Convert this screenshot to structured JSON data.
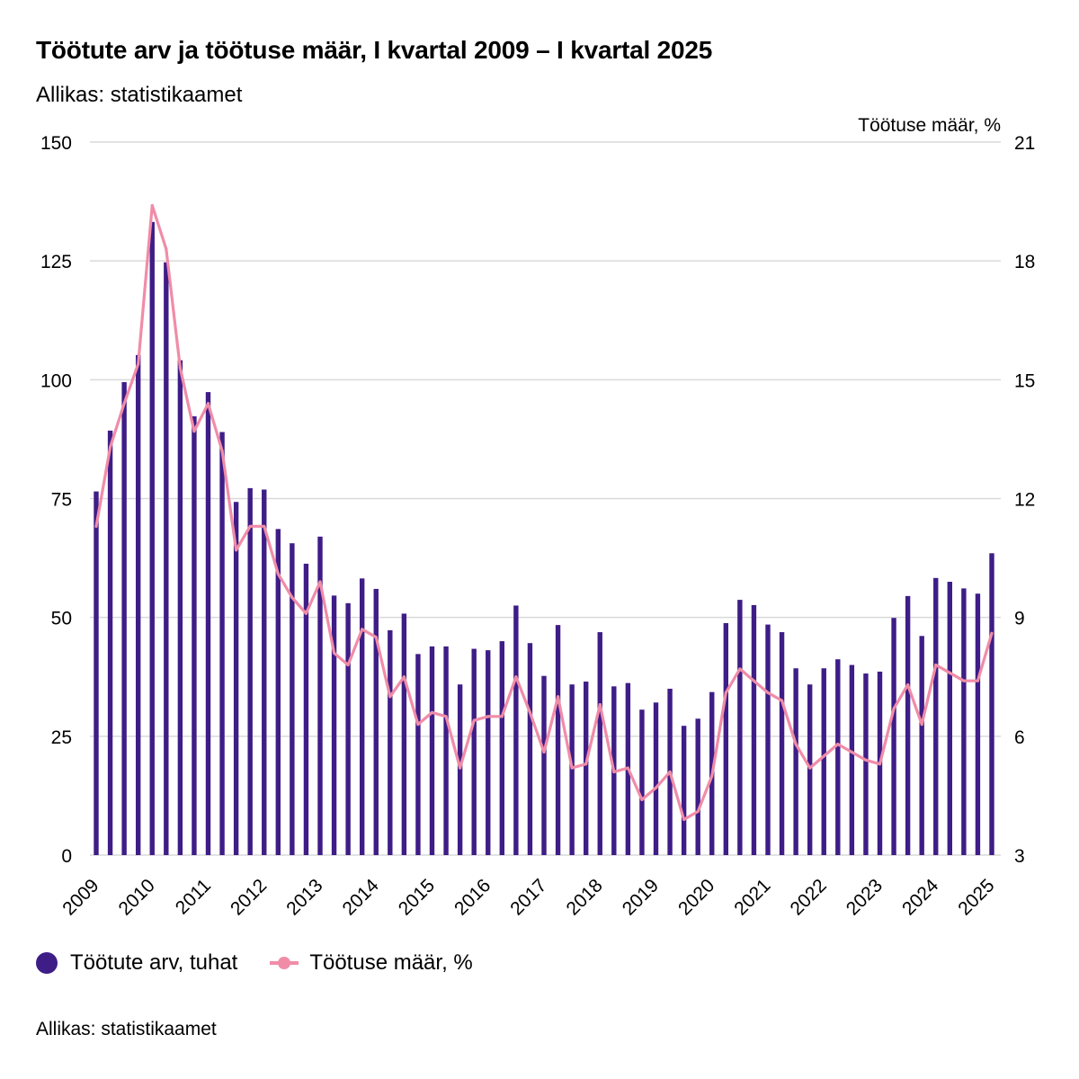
{
  "header": {
    "title": "Töötute arv ja töötuse määr, I kvartal 2009 – I kvartal 2025",
    "subtitle": "Allikas: statistikaamet"
  },
  "legend": {
    "items": [
      {
        "label": "Töötute arv, tuhat",
        "icon": "dot-icon"
      },
      {
        "label": "Töötuse määr, %",
        "icon": "line-marker-icon"
      }
    ]
  },
  "footer": {
    "source": "Allikas: statistikaamet"
  },
  "colors": {
    "bars": "#3e1d87",
    "line": "#f08ca8",
    "grid": "#d9d9d9"
  },
  "chart_data": {
    "type": "bar",
    "title": "Töötute arv ja töötuse määr, I kvartal 2009 – I kvartal 2025",
    "xlabel": "",
    "ylabel": "",
    "y2label": "Töötuse määr, %",
    "ylim": [
      0,
      150
    ],
    "y2lim": [
      3,
      21
    ],
    "yticks": [
      0,
      25,
      50,
      75,
      100,
      125,
      150
    ],
    "y2ticks": [
      3,
      6,
      9,
      12,
      15,
      18,
      21
    ],
    "grid": true,
    "legend_position": "bottom-left",
    "x_tick_labels": [
      "2009",
      "2010",
      "2011",
      "2012",
      "2013",
      "2014",
      "2015",
      "2016",
      "2017",
      "2018",
      "2019",
      "2020",
      "2021",
      "2022",
      "2023",
      "2024",
      "2025"
    ],
    "x_tick_label_index": [
      0,
      4,
      8,
      12,
      16,
      20,
      24,
      28,
      32,
      36,
      40,
      44,
      48,
      52,
      56,
      60,
      64
    ],
    "series": [
      {
        "name": "Töötute arv, tuhat",
        "type": "bar",
        "axis": "left",
        "values": [
          76.5,
          89.3,
          99.5,
          105.2,
          133.2,
          124.7,
          104.1,
          92.3,
          97.4,
          89.0,
          74.3,
          77.2,
          76.9,
          68.6,
          65.6,
          61.3,
          67.0,
          54.6,
          53.0,
          58.2,
          56.0,
          47.3,
          50.8,
          42.3,
          43.9,
          43.9,
          35.9,
          43.4,
          43.1,
          45.0,
          52.5,
          44.6,
          37.7,
          48.4,
          35.9,
          36.5,
          46.9,
          35.5,
          36.2,
          30.6,
          32.1,
          35.0,
          27.2,
          28.7,
          34.3,
          48.8,
          53.7,
          52.6,
          48.5,
          46.9,
          39.3,
          35.9,
          39.3,
          41.2,
          40.0,
          38.2,
          38.6,
          49.9,
          54.5,
          46.1,
          58.3,
          57.5,
          56.1,
          55.0,
          63.5
        ]
      },
      {
        "name": "Töötuse määr, %",
        "type": "line",
        "axis": "right",
        "values": [
          11.3,
          13.3,
          14.4,
          15.4,
          19.4,
          18.3,
          15.3,
          13.7,
          14.4,
          13.2,
          10.7,
          11.3,
          11.3,
          10.1,
          9.5,
          9.1,
          9.9,
          8.1,
          7.8,
          8.7,
          8.5,
          7.0,
          7.5,
          6.3,
          6.6,
          6.5,
          5.2,
          6.4,
          6.5,
          6.5,
          7.5,
          6.6,
          5.6,
          7.0,
          5.2,
          5.3,
          6.8,
          5.1,
          5.2,
          4.4,
          4.7,
          5.1,
          3.9,
          4.1,
          5.0,
          7.1,
          7.7,
          7.4,
          7.1,
          6.9,
          5.8,
          5.2,
          5.5,
          5.8,
          5.6,
          5.4,
          5.3,
          6.7,
          7.3,
          6.3,
          7.8,
          7.6,
          7.4,
          7.4,
          8.6
        ]
      }
    ]
  }
}
